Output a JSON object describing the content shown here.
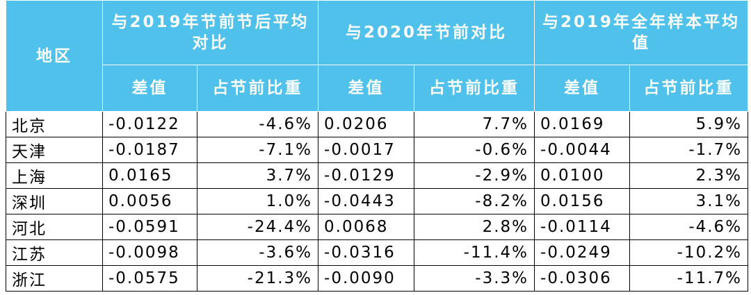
{
  "table": {
    "header": {
      "region": "地区",
      "groups": [
        "与2019年节前节后平均对比",
        "与2020年节前对比",
        "与2019年全年样本平均值"
      ],
      "subheaders": [
        "差值",
        "占节前比重",
        "差值",
        "占节前比重",
        "差值",
        "占节前比重"
      ]
    },
    "rows": [
      [
        "北京",
        "-0.0122",
        "-4.6%",
        "0.0206",
        "7.7%",
        "0.0169",
        "5.9%"
      ],
      [
        "天津",
        "-0.0187",
        "-7.1%",
        "-0.0017",
        "-0.6%",
        "-0.0044",
        "-1.7%"
      ],
      [
        "上海",
        "0.0165",
        "3.7%",
        "-0.0129",
        "-2.9%",
        "0.0100",
        "2.3%"
      ],
      [
        "深圳",
        "0.0056",
        "1.0%",
        "-0.0443",
        "-8.2%",
        "0.0156",
        "3.1%"
      ],
      [
        "河北",
        "-0.0591",
        "-24.4%",
        "0.0068",
        "2.8%",
        "-0.0114",
        "-4.6%"
      ],
      [
        "江苏",
        "-0.0098",
        "-3.6%",
        "-0.0316",
        "-11.4%",
        "-0.0249",
        "-10.2%"
      ],
      [
        "浙江",
        "-0.0575",
        "-21.3%",
        "-0.0090",
        "-3.3%",
        "-0.0306",
        "-11.7%"
      ]
    ]
  }
}
